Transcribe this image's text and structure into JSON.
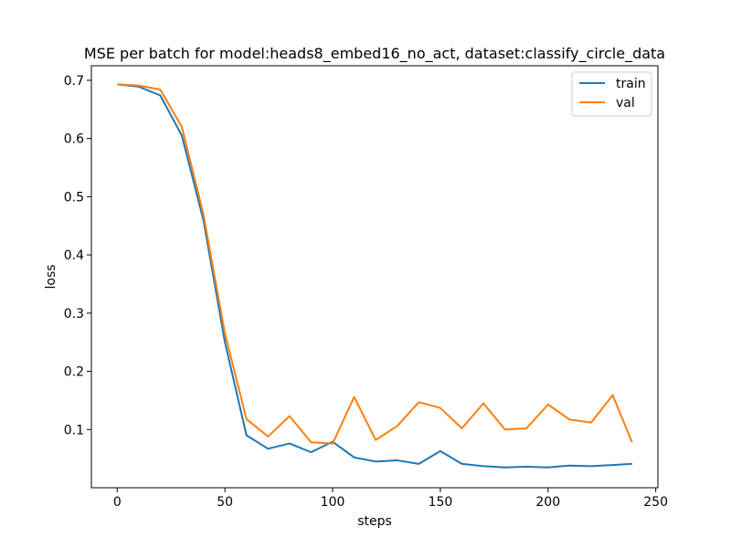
{
  "chart_data": {
    "type": "line",
    "title": "MSE per batch for model:heads8_embed16_no_act, dataset:classify_circle_data",
    "xlabel": "steps",
    "ylabel": "loss",
    "xlim": [
      -12,
      251
    ],
    "ylim": [
      0.0,
      0.725
    ],
    "xticks": [
      0,
      50,
      100,
      150,
      200,
      250
    ],
    "yticks": [
      0.1,
      0.2,
      0.3,
      0.4,
      0.5,
      0.6,
      0.7
    ],
    "ytick_labels": [
      "0.1",
      "0.2",
      "0.3",
      "0.4",
      "0.5",
      "0.6",
      "0.7"
    ],
    "legend_position": "top-right",
    "grid": false,
    "x": [
      0,
      10,
      20,
      30,
      40,
      50,
      60,
      70,
      80,
      90,
      100,
      110,
      120,
      130,
      140,
      150,
      160,
      170,
      180,
      190,
      200,
      210,
      220,
      230,
      239
    ],
    "series": [
      {
        "name": "train",
        "color": "#1f77b4",
        "values": [
          0.693,
          0.689,
          0.674,
          0.605,
          0.46,
          0.25,
          0.09,
          0.067,
          0.076,
          0.061,
          0.079,
          0.052,
          0.045,
          0.047,
          0.041,
          0.063,
          0.041,
          0.037,
          0.035,
          0.036,
          0.035,
          0.038,
          0.037,
          0.039,
          0.041
        ]
      },
      {
        "name": "val",
        "color": "#ff7f0e",
        "values": [
          0.693,
          0.691,
          0.684,
          0.62,
          0.47,
          0.265,
          0.118,
          0.088,
          0.123,
          0.078,
          0.076,
          0.156,
          0.082,
          0.106,
          0.147,
          0.137,
          0.102,
          0.145,
          0.1,
          0.102,
          0.143,
          0.117,
          0.112,
          0.159,
          0.078
        ]
      }
    ]
  }
}
